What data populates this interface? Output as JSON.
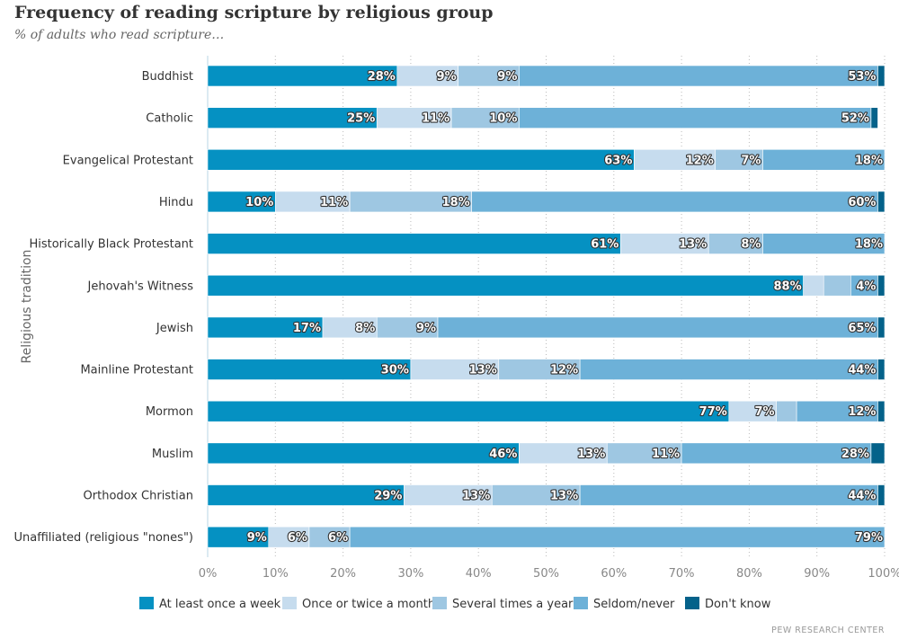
{
  "title": "Frequency of reading scripture by religious group",
  "subtitle": "% of adults who read scripture…",
  "source": "PEW RESEARCH CENTER",
  "chart_data": {
    "type": "bar",
    "orientation": "horizontal",
    "stacked": true,
    "normalized": true,
    "title": "Frequency of reading scripture by religious group",
    "subtitle": "% of adults who read scripture…",
    "xlabel": "",
    "ylabel": "Religious tradition",
    "xlim": [
      0,
      100
    ],
    "x_ticks": [
      "0%",
      "10%",
      "20%",
      "30%",
      "40%",
      "50%",
      "60%",
      "70%",
      "80%",
      "90%",
      "100%"
    ],
    "grid": "vertical dotted",
    "legend_position": "bottom",
    "categories": [
      "Buddhist",
      "Catholic",
      "Evangelical Protestant",
      "Hindu",
      "Historically Black Protestant",
      "Jehovah's Witness",
      "Jewish",
      "Mainline Protestant",
      "Mormon",
      "Muslim",
      "Orthodox Christian",
      "Unaffiliated (religious \"nones\")"
    ],
    "series": [
      {
        "name": "At least once a week",
        "color": "#0591c2",
        "values": [
          28,
          25,
          63,
          10,
          61,
          88,
          17,
          30,
          77,
          46,
          29,
          9
        ],
        "labels": [
          "28%",
          "25%",
          "63%",
          "10%",
          "61%",
          "88%",
          "17%",
          "30%",
          "77%",
          "46%",
          "29%",
          "9%"
        ]
      },
      {
        "name": "Once or twice a month",
        "color": "#c6dcee",
        "values": [
          9,
          11,
          12,
          11,
          13,
          3,
          8,
          13,
          7,
          13,
          13,
          6
        ],
        "labels": [
          "9%",
          "11%",
          "12%",
          "11%",
          "13%",
          "",
          "8%",
          "13%",
          "7%",
          "13%",
          "13%",
          "6%"
        ]
      },
      {
        "name": "Several times a year",
        "color": "#9ec7e2",
        "values": [
          9,
          10,
          7,
          18,
          8,
          4,
          9,
          12,
          3,
          11,
          13,
          6
        ],
        "labels": [
          "9%",
          "10%",
          "7%",
          "18%",
          "8%",
          "",
          "9%",
          "12%",
          "",
          "11%",
          "13%",
          "6%"
        ]
      },
      {
        "name": "Seldom/never",
        "color": "#6db1d8",
        "values": [
          53,
          52,
          18,
          60,
          18,
          4,
          65,
          44,
          12,
          28,
          44,
          79
        ],
        "labels": [
          "53%",
          "52%",
          "18%",
          "60%",
          "18%",
          "4%",
          "65%",
          "44%",
          "12%",
          "28%",
          "44%",
          "79%"
        ]
      },
      {
        "name": "Don't know",
        "color": "#04628a",
        "values": [
          1,
          1,
          1,
          1,
          1,
          2,
          1,
          1,
          1,
          2,
          1,
          1
        ],
        "labels": [
          "",
          "",
          "",
          "",
          "",
          "",
          "",
          "",
          "",
          "",
          "",
          ""
        ]
      }
    ]
  }
}
